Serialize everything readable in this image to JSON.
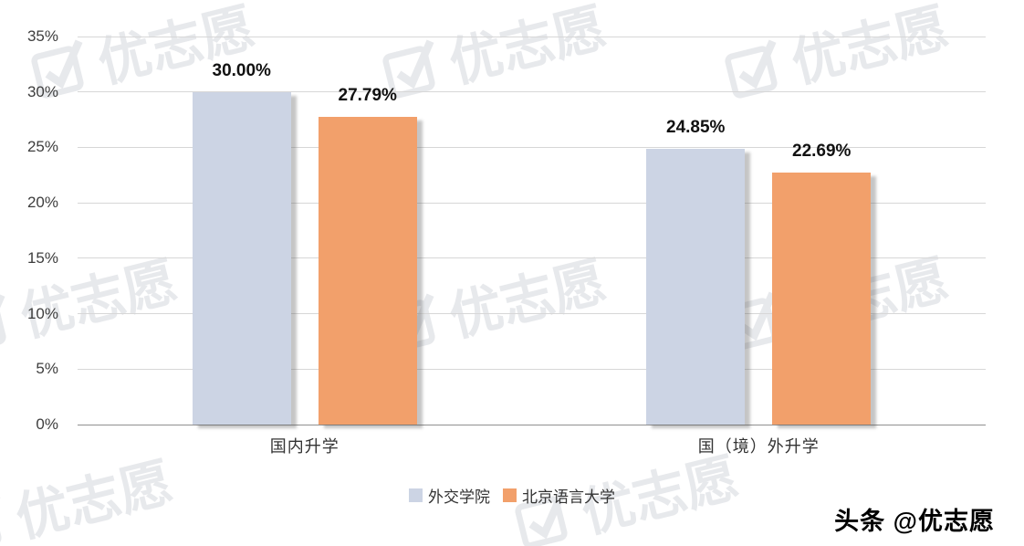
{
  "chart_data": {
    "type": "bar",
    "title": "",
    "categories": [
      "国内升学",
      "国（境）外升学"
    ],
    "series": [
      {
        "name": "外交学院",
        "color": "#ccd4e4",
        "values": [
          30.0,
          24.85
        ]
      },
      {
        "name": "北京语言大学",
        "color": "#f2a06b",
        "values": [
          27.79,
          22.69
        ]
      }
    ],
    "value_labels": [
      [
        "30.00%",
        "27.79%"
      ],
      [
        "24.85%",
        "22.69%"
      ]
    ],
    "xlabel": "",
    "ylabel": "",
    "ylim": [
      0,
      35
    ],
    "ytick_step": 5,
    "yticks": [
      "0%",
      "5%",
      "10%",
      "15%",
      "20%",
      "25%",
      "30%",
      "35%"
    ],
    "grid": true,
    "legend_position": "bottom"
  },
  "watermark": {
    "text": "优志愿"
  },
  "footer": {
    "credit": "头条 @优志愿"
  }
}
